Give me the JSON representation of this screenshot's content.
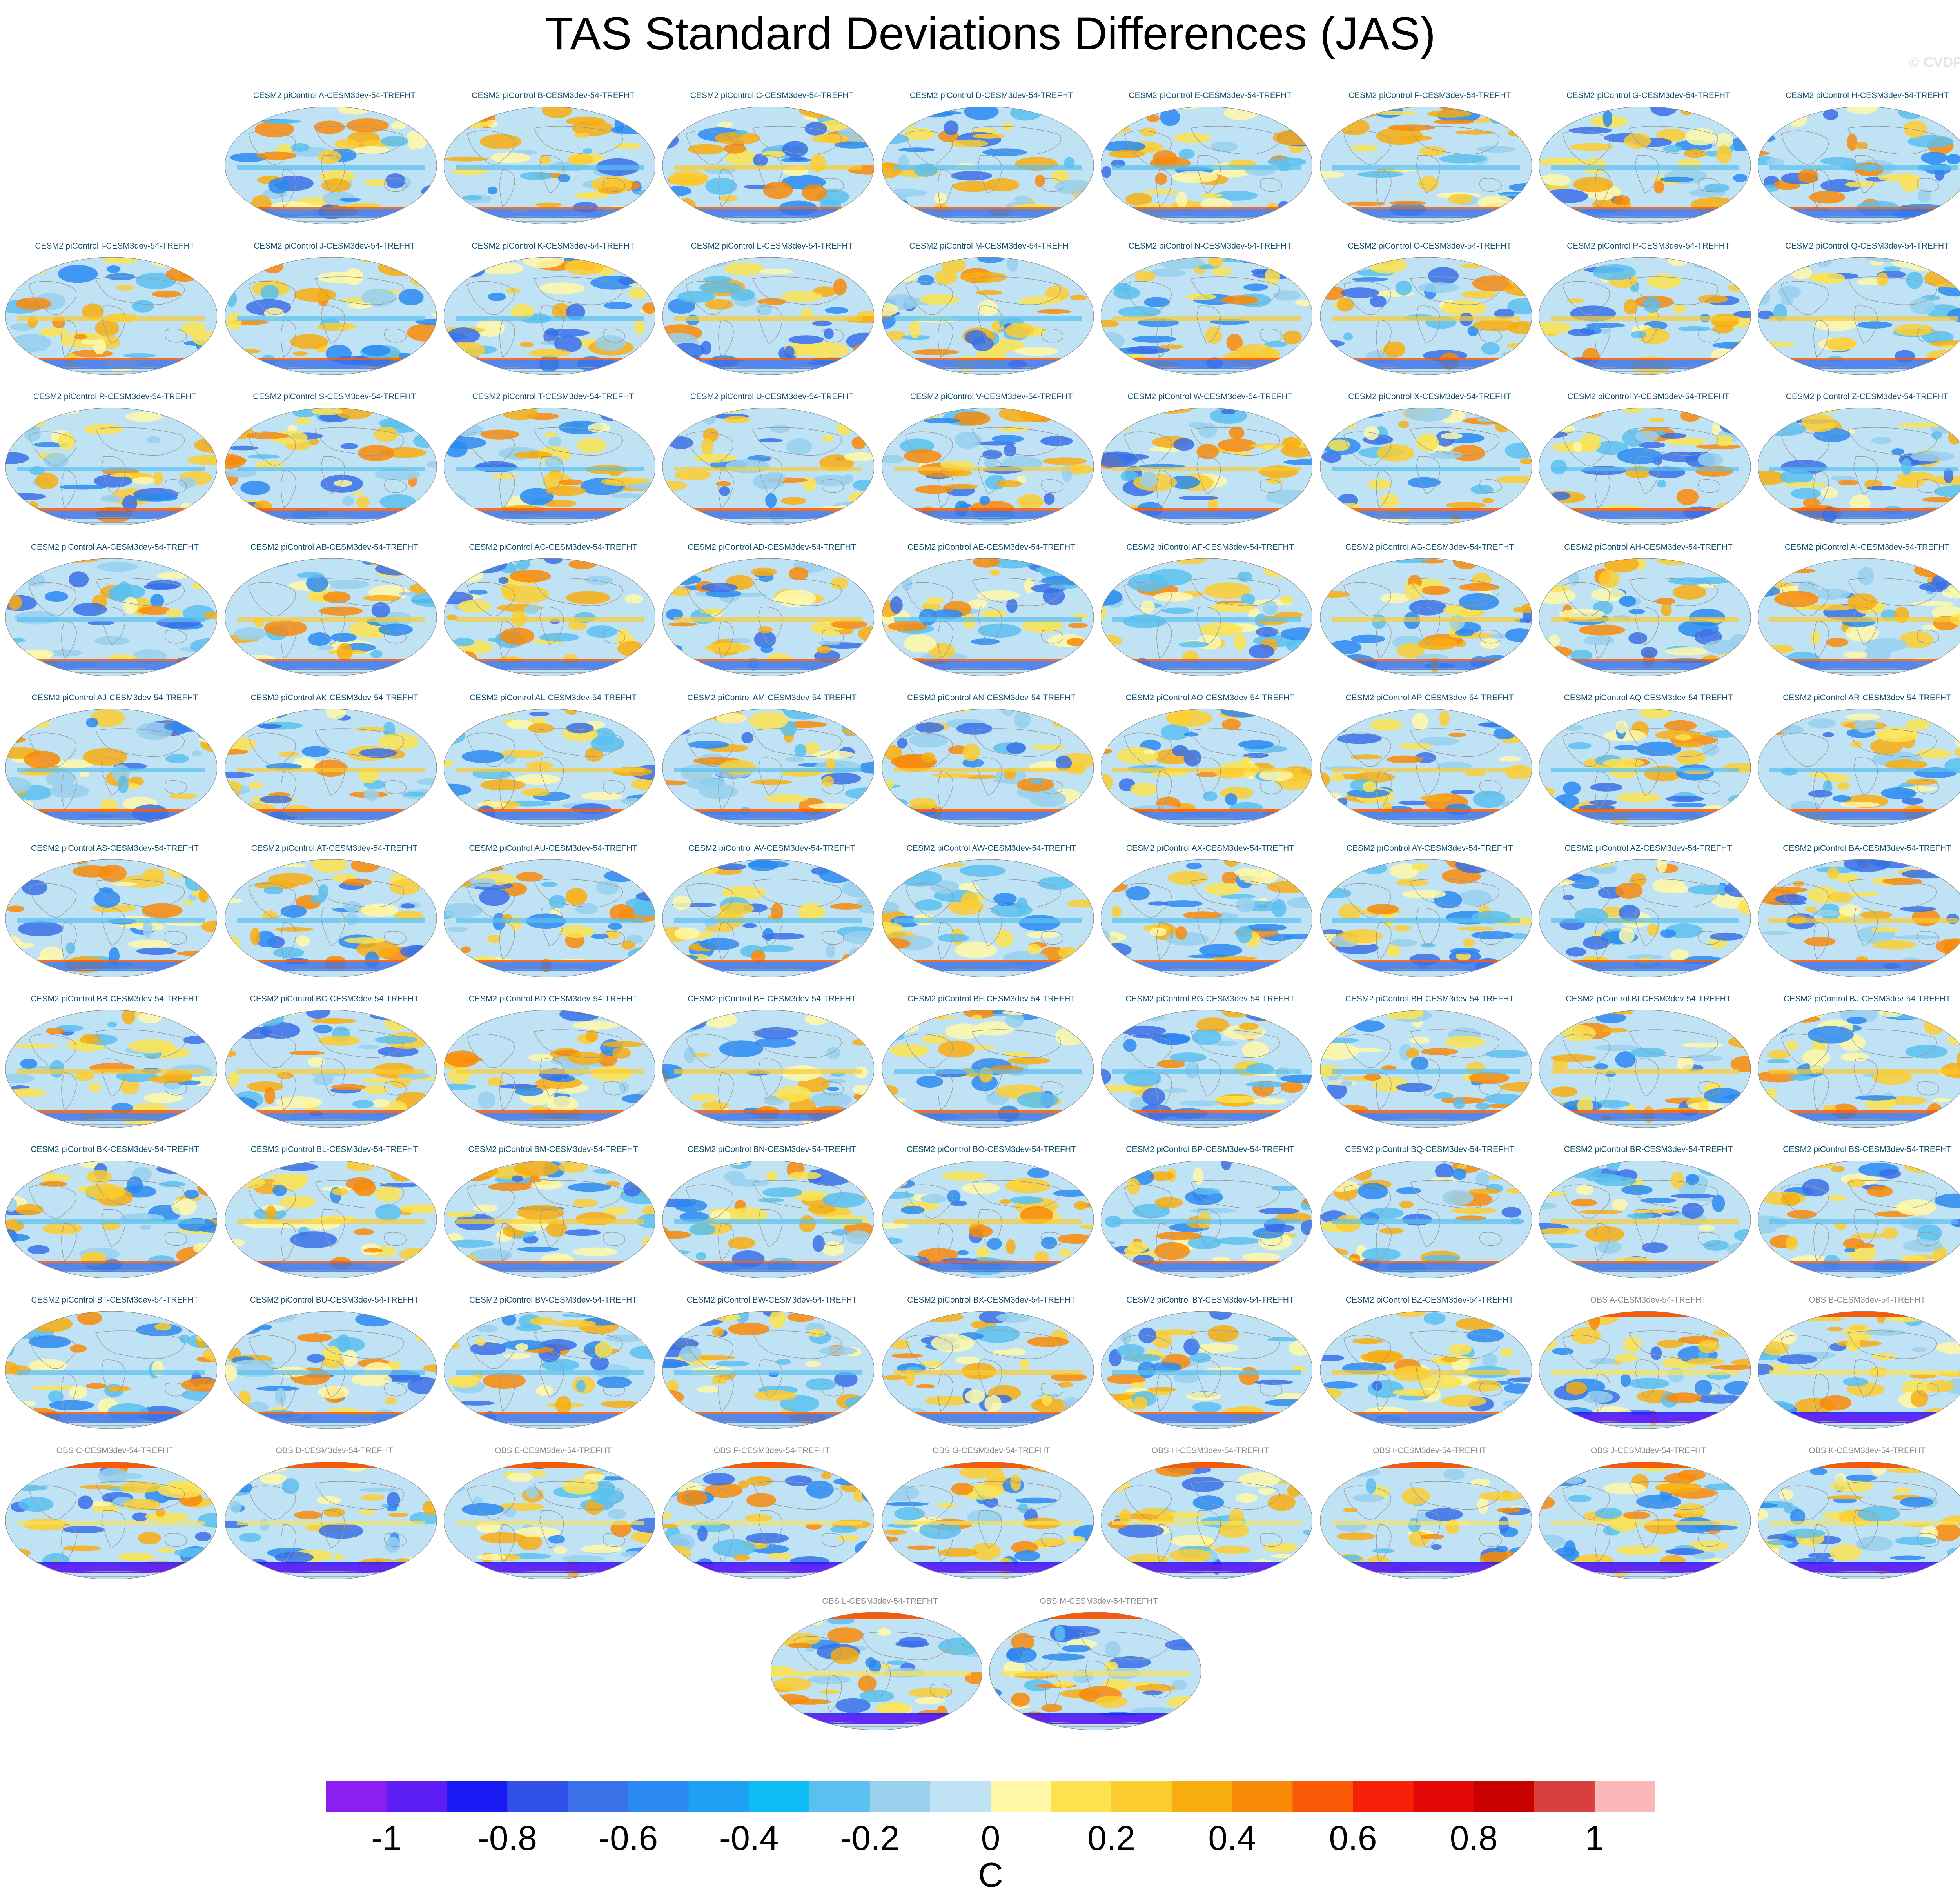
{
  "title": "TAS Standard Deviations Differences (JAS)",
  "credit": "© CVDP-LE",
  "chart_data": {
    "type": "heatmap",
    "description_kind": "grid of global map panels (Robinson-style projection) sharing one colorbar",
    "variable": "TAS",
    "season": "JAS",
    "colors": {
      "model_title": "#14506e",
      "obs_title": "#8a8a8a",
      "coastline": "#9a9a9a"
    },
    "panels": [
      {
        "label": "CESM2 piControl A-CESM3dev-54-TREFHT",
        "kind": "model"
      },
      {
        "label": "CESM2 piControl B-CESM3dev-54-TREFHT",
        "kind": "model"
      },
      {
        "label": "CESM2 piControl C-CESM3dev-54-TREFHT",
        "kind": "model"
      },
      {
        "label": "CESM2 piControl D-CESM3dev-54-TREFHT",
        "kind": "model"
      },
      {
        "label": "CESM2 piControl E-CESM3dev-54-TREFHT",
        "kind": "model"
      },
      {
        "label": "CESM2 piControl F-CESM3dev-54-TREFHT",
        "kind": "model"
      },
      {
        "label": "CESM2 piControl G-CESM3dev-54-TREFHT",
        "kind": "model"
      },
      {
        "label": "CESM2 piControl H-CESM3dev-54-TREFHT",
        "kind": "model"
      },
      {
        "label": "CESM2 piControl I-CESM3dev-54-TREFHT",
        "kind": "model"
      },
      {
        "label": "CESM2 piControl J-CESM3dev-54-TREFHT",
        "kind": "model"
      },
      {
        "label": "CESM2 piControl K-CESM3dev-54-TREFHT",
        "kind": "model"
      },
      {
        "label": "CESM2 piControl L-CESM3dev-54-TREFHT",
        "kind": "model"
      },
      {
        "label": "CESM2 piControl M-CESM3dev-54-TREFHT",
        "kind": "model"
      },
      {
        "label": "CESM2 piControl N-CESM3dev-54-TREFHT",
        "kind": "model"
      },
      {
        "label": "CESM2 piControl O-CESM3dev-54-TREFHT",
        "kind": "model"
      },
      {
        "label": "CESM2 piControl P-CESM3dev-54-TREFHT",
        "kind": "model"
      },
      {
        "label": "CESM2 piControl Q-CESM3dev-54-TREFHT",
        "kind": "model"
      },
      {
        "label": "CESM2 piControl R-CESM3dev-54-TREFHT",
        "kind": "model"
      },
      {
        "label": "CESM2 piControl S-CESM3dev-54-TREFHT",
        "kind": "model"
      },
      {
        "label": "CESM2 piControl T-CESM3dev-54-TREFHT",
        "kind": "model"
      },
      {
        "label": "CESM2 piControl U-CESM3dev-54-TREFHT",
        "kind": "model"
      },
      {
        "label": "CESM2 piControl V-CESM3dev-54-TREFHT",
        "kind": "model"
      },
      {
        "label": "CESM2 piControl W-CESM3dev-54-TREFHT",
        "kind": "model"
      },
      {
        "label": "CESM2 piControl X-CESM3dev-54-TREFHT",
        "kind": "model"
      },
      {
        "label": "CESM2 piControl Y-CESM3dev-54-TREFHT",
        "kind": "model"
      },
      {
        "label": "CESM2 piControl Z-CESM3dev-54-TREFHT",
        "kind": "model"
      },
      {
        "label": "CESM2 piControl AA-CESM3dev-54-TREFHT",
        "kind": "model"
      },
      {
        "label": "CESM2 piControl AB-CESM3dev-54-TREFHT",
        "kind": "model"
      },
      {
        "label": "CESM2 piControl AC-CESM3dev-54-TREFHT",
        "kind": "model"
      },
      {
        "label": "CESM2 piControl AD-CESM3dev-54-TREFHT",
        "kind": "model"
      },
      {
        "label": "CESM2 piControl AE-CESM3dev-54-TREFHT",
        "kind": "model"
      },
      {
        "label": "CESM2 piControl AF-CESM3dev-54-TREFHT",
        "kind": "model"
      },
      {
        "label": "CESM2 piControl AG-CESM3dev-54-TREFHT",
        "kind": "model"
      },
      {
        "label": "CESM2 piControl AH-CESM3dev-54-TREFHT",
        "kind": "model"
      },
      {
        "label": "CESM2 piControl AI-CESM3dev-54-TREFHT",
        "kind": "model"
      },
      {
        "label": "CESM2 piControl AJ-CESM3dev-54-TREFHT",
        "kind": "model"
      },
      {
        "label": "CESM2 piControl AK-CESM3dev-54-TREFHT",
        "kind": "model"
      },
      {
        "label": "CESM2 piControl AL-CESM3dev-54-TREFHT",
        "kind": "model"
      },
      {
        "label": "CESM2 piControl AM-CESM3dev-54-TREFHT",
        "kind": "model"
      },
      {
        "label": "CESM2 piControl AN-CESM3dev-54-TREFHT",
        "kind": "model"
      },
      {
        "label": "CESM2 piControl AO-CESM3dev-54-TREFHT",
        "kind": "model"
      },
      {
        "label": "CESM2 piControl AP-CESM3dev-54-TREFHT",
        "kind": "model"
      },
      {
        "label": "CESM2 piControl AQ-CESM3dev-54-TREFHT",
        "kind": "model"
      },
      {
        "label": "CESM2 piControl AR-CESM3dev-54-TREFHT",
        "kind": "model"
      },
      {
        "label": "CESM2 piControl AS-CESM3dev-54-TREFHT",
        "kind": "model"
      },
      {
        "label": "CESM2 piControl AT-CESM3dev-54-TREFHT",
        "kind": "model"
      },
      {
        "label": "CESM2 piControl AU-CESM3dev-54-TREFHT",
        "kind": "model"
      },
      {
        "label": "CESM2 piControl AV-CESM3dev-54-TREFHT",
        "kind": "model"
      },
      {
        "label": "CESM2 piControl AW-CESM3dev-54-TREFHT",
        "kind": "model"
      },
      {
        "label": "CESM2 piControl AX-CESM3dev-54-TREFHT",
        "kind": "model"
      },
      {
        "label": "CESM2 piControl AY-CESM3dev-54-TREFHT",
        "kind": "model"
      },
      {
        "label": "CESM2 piControl AZ-CESM3dev-54-TREFHT",
        "kind": "model"
      },
      {
        "label": "CESM2 piControl BA-CESM3dev-54-TREFHT",
        "kind": "model"
      },
      {
        "label": "CESM2 piControl BB-CESM3dev-54-TREFHT",
        "kind": "model"
      },
      {
        "label": "CESM2 piControl BC-CESM3dev-54-TREFHT",
        "kind": "model"
      },
      {
        "label": "CESM2 piControl BD-CESM3dev-54-TREFHT",
        "kind": "model"
      },
      {
        "label": "CESM2 piControl BE-CESM3dev-54-TREFHT",
        "kind": "model"
      },
      {
        "label": "CESM2 piControl BF-CESM3dev-54-TREFHT",
        "kind": "model"
      },
      {
        "label": "CESM2 piControl BG-CESM3dev-54-TREFHT",
        "kind": "model"
      },
      {
        "label": "CESM2 piControl BH-CESM3dev-54-TREFHT",
        "kind": "model"
      },
      {
        "label": "CESM2 piControl BI-CESM3dev-54-TREFHT",
        "kind": "model"
      },
      {
        "label": "CESM2 piControl BJ-CESM3dev-54-TREFHT",
        "kind": "model"
      },
      {
        "label": "CESM2 piControl BK-CESM3dev-54-TREFHT",
        "kind": "model"
      },
      {
        "label": "CESM2 piControl BL-CESM3dev-54-TREFHT",
        "kind": "model"
      },
      {
        "label": "CESM2 piControl BM-CESM3dev-54-TREFHT",
        "kind": "model"
      },
      {
        "label": "CESM2 piControl BN-CESM3dev-54-TREFHT",
        "kind": "model"
      },
      {
        "label": "CESM2 piControl BO-CESM3dev-54-TREFHT",
        "kind": "model"
      },
      {
        "label": "CESM2 piControl BP-CESM3dev-54-TREFHT",
        "kind": "model"
      },
      {
        "label": "CESM2 piControl BQ-CESM3dev-54-TREFHT",
        "kind": "model"
      },
      {
        "label": "CESM2 piControl BR-CESM3dev-54-TREFHT",
        "kind": "model"
      },
      {
        "label": "CESM2 piControl BS-CESM3dev-54-TREFHT",
        "kind": "model"
      },
      {
        "label": "CESM2 piControl BT-CESM3dev-54-TREFHT",
        "kind": "model"
      },
      {
        "label": "CESM2 piControl BU-CESM3dev-54-TREFHT",
        "kind": "model"
      },
      {
        "label": "CESM2 piControl BV-CESM3dev-54-TREFHT",
        "kind": "model"
      },
      {
        "label": "CESM2 piControl BW-CESM3dev-54-TREFHT",
        "kind": "model"
      },
      {
        "label": "CESM2 piControl BX-CESM3dev-54-TREFHT",
        "kind": "model"
      },
      {
        "label": "CESM2 piControl BY-CESM3dev-54-TREFHT",
        "kind": "model"
      },
      {
        "label": "CESM2 piControl BZ-CESM3dev-54-TREFHT",
        "kind": "model"
      },
      {
        "label": "OBS A-CESM3dev-54-TREFHT",
        "kind": "obs"
      },
      {
        "label": "OBS B-CESM3dev-54-TREFHT",
        "kind": "obs"
      },
      {
        "label": "OBS C-CESM3dev-54-TREFHT",
        "kind": "obs"
      },
      {
        "label": "OBS D-CESM3dev-54-TREFHT",
        "kind": "obs"
      },
      {
        "label": "OBS E-CESM3dev-54-TREFHT",
        "kind": "obs"
      },
      {
        "label": "OBS F-CESM3dev-54-TREFHT",
        "kind": "obs"
      },
      {
        "label": "OBS G-CESM3dev-54-TREFHT",
        "kind": "obs"
      },
      {
        "label": "OBS H-CESM3dev-54-TREFHT",
        "kind": "obs"
      },
      {
        "label": "OBS I-CESM3dev-54-TREFHT",
        "kind": "obs"
      },
      {
        "label": "OBS J-CESM3dev-54-TREFHT",
        "kind": "obs"
      },
      {
        "label": "OBS K-CESM3dev-54-TREFHT",
        "kind": "obs"
      },
      {
        "label": "OBS L-CESM3dev-54-TREFHT",
        "kind": "obs"
      },
      {
        "label": "OBS M-CESM3dev-54-TREFHT",
        "kind": "obs"
      }
    ],
    "colorbar": {
      "units": "C",
      "range": [
        -1.1,
        1.1
      ],
      "step": 0.1,
      "colors": [
        "#8a1ff0",
        "#5d1ef5",
        "#1a1af5",
        "#3050e8",
        "#3a70e8",
        "#2a8af0",
        "#1ea0f5",
        "#10bcf5",
        "#5ac0f0",
        "#98d0ee",
        "#bfe2f4",
        "#fff8a8",
        "#fde350",
        "#fbcc30",
        "#f8ad10",
        "#f98a08",
        "#f95a08",
        "#f62008",
        "#e30808",
        "#c80000",
        "#d84040",
        "#fbb8b8"
      ],
      "tick_labels": [
        "-1",
        "-0.8",
        "-0.6",
        "-0.4",
        "-0.2",
        "0",
        "0.2",
        "0.4",
        "0.6",
        "0.8",
        "1"
      ],
      "tick_values": [
        -1,
        -0.8,
        -0.6,
        -0.4,
        -0.2,
        0,
        0.2,
        0.4,
        0.6,
        0.8,
        1
      ]
    }
  }
}
